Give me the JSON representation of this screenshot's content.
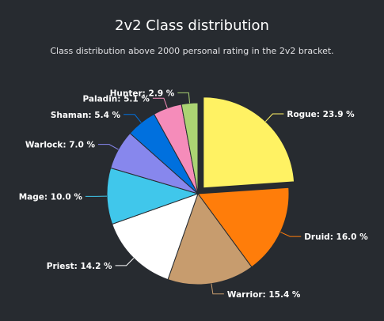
{
  "chart_data": {
    "type": "pie",
    "title": "2v2 Class distribution",
    "subtitle": "Class distribution above 2000 personal rating in the 2v2 bracket.",
    "value_suffix": " %",
    "slices": [
      {
        "name": "Rogue",
        "value": 23.9,
        "color": "#fff263",
        "sliced": true
      },
      {
        "name": "Druid",
        "value": 16.0,
        "color": "#ff7d0a"
      },
      {
        "name": "Warrior",
        "value": 15.4,
        "color": "#c79c6e"
      },
      {
        "name": "Priest",
        "value": 14.2,
        "color": "#ffffff"
      },
      {
        "name": "Mage",
        "value": 10.0,
        "color": "#40c7eb"
      },
      {
        "name": "Warlock",
        "value": 7.0,
        "color": "#8787ed"
      },
      {
        "name": "Shaman",
        "value": 5.4,
        "color": "#0070de"
      },
      {
        "name": "Paladin",
        "value": 5.1,
        "color": "#f58cba"
      },
      {
        "name": "Hunter",
        "value": 2.9,
        "color": "#abd473"
      }
    ]
  }
}
